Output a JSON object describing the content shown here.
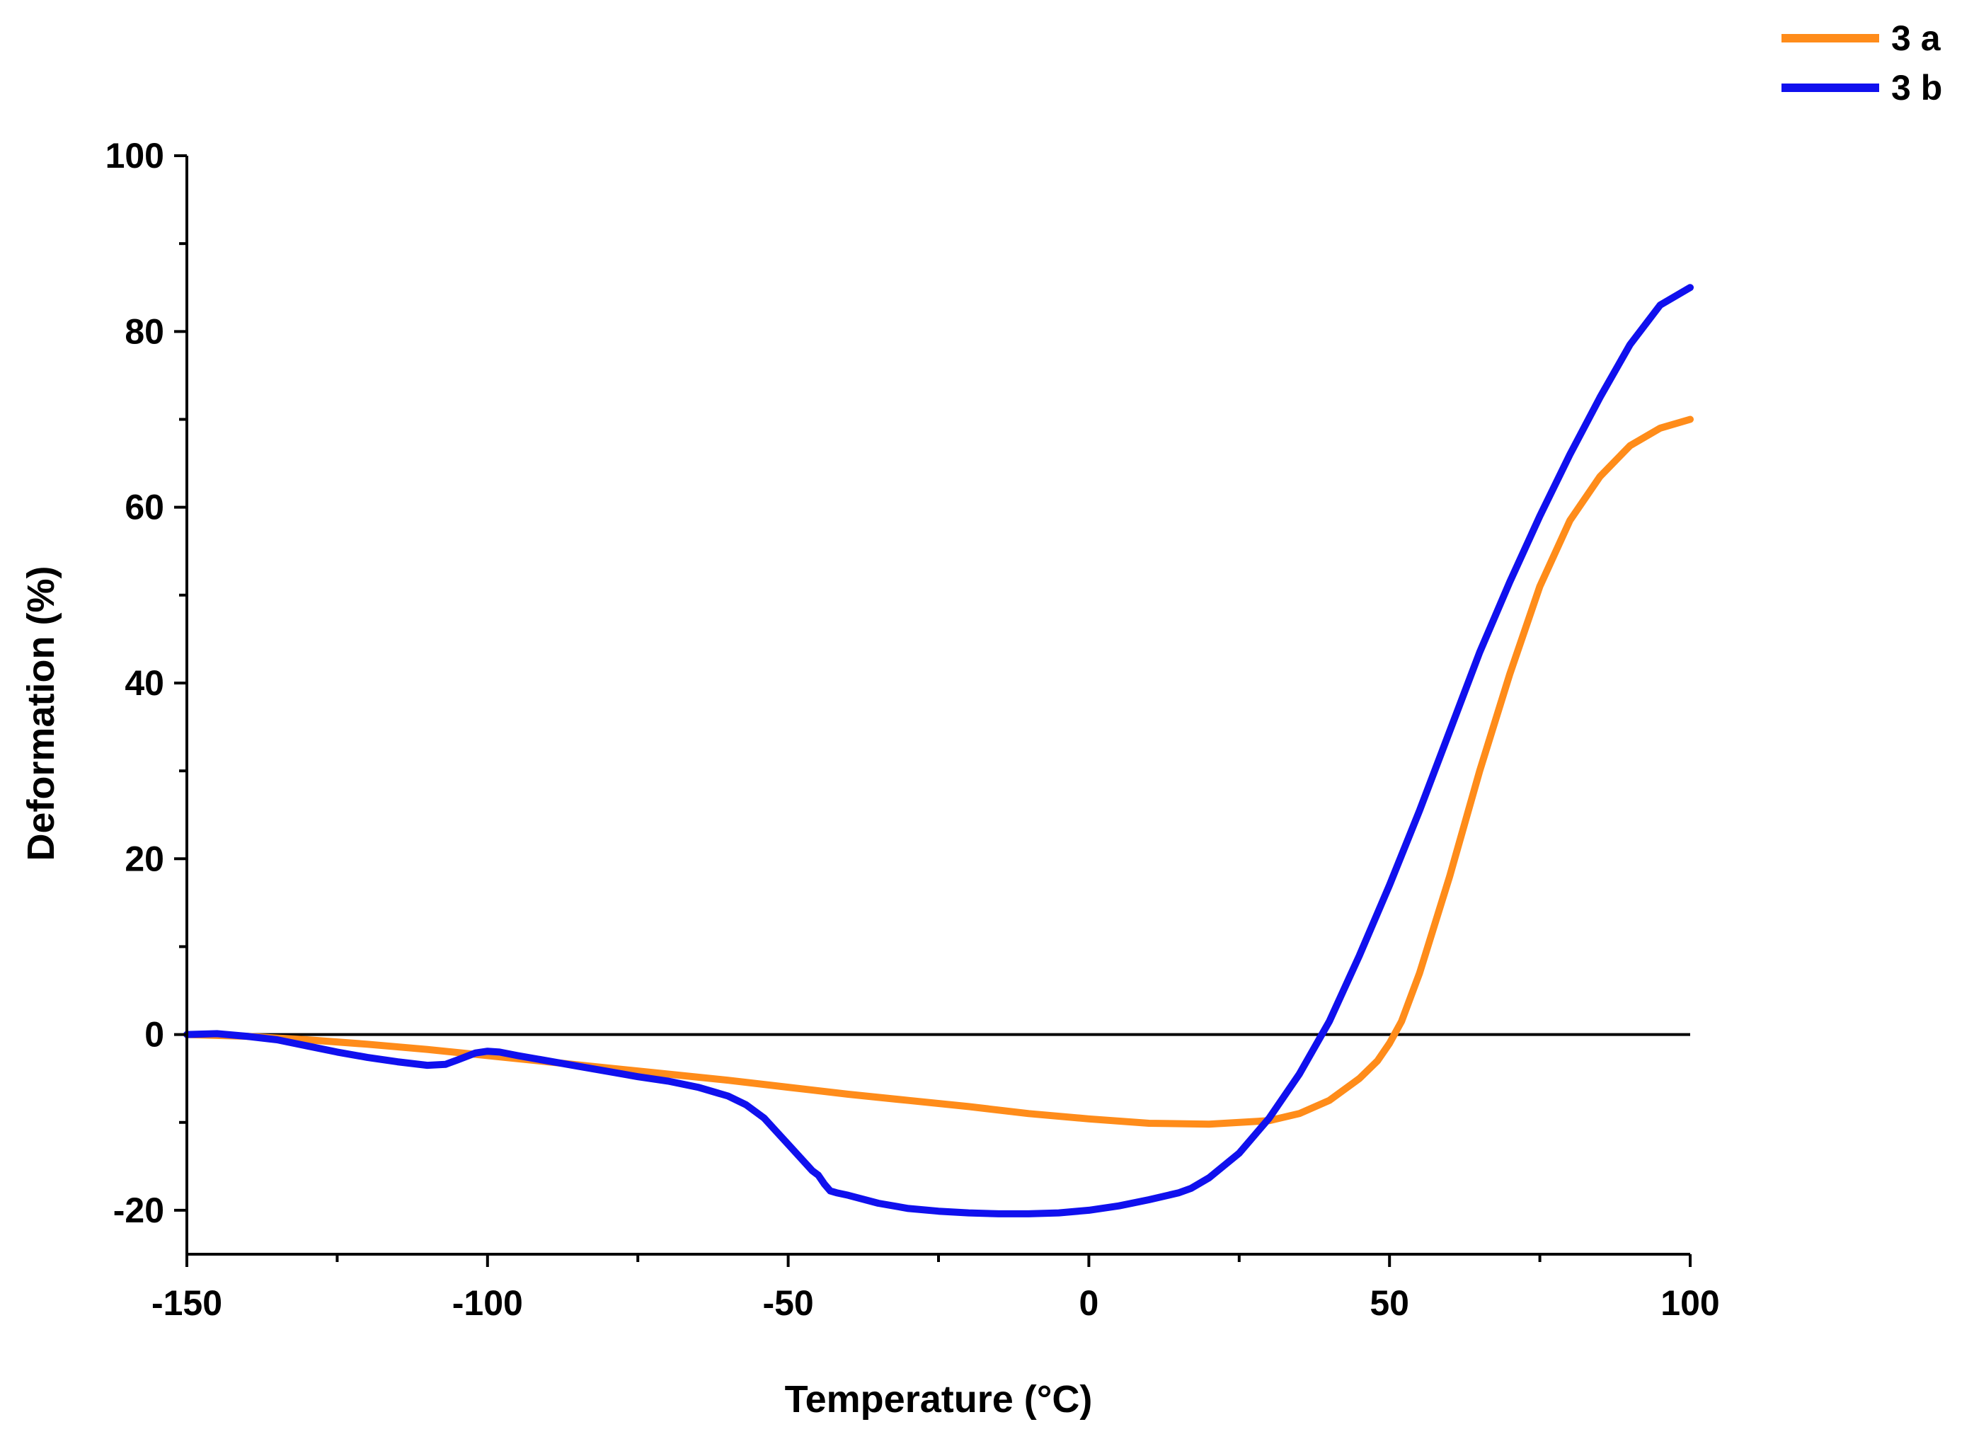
{
  "chart_data": {
    "type": "line",
    "title": "",
    "xlabel": "Temperature (°C)",
    "ylabel": "Deformation (%)",
    "xlim": [
      -150,
      100
    ],
    "ylim": [
      -25,
      100
    ],
    "x_ticks": [
      -150,
      -100,
      -50,
      0,
      50,
      100
    ],
    "x_tick_labels": [
      "-150",
      "-100",
      "-50",
      "0",
      "50",
      "100"
    ],
    "x_minor_step": 25,
    "y_ticks": [
      -20,
      0,
      20,
      40,
      60,
      80,
      100
    ],
    "y_tick_labels": [
      "-20",
      "0",
      "20",
      "40",
      "60",
      "80",
      "100"
    ],
    "y_minor_step": 10,
    "zero_line": true,
    "grid": false,
    "legend_position": "top-right",
    "series": [
      {
        "name": "3 a",
        "color": "#ff8c1a",
        "x": [
          -150,
          -140,
          -130,
          -120,
          -110,
          -100,
          -90,
          -80,
          -70,
          -60,
          -50,
          -40,
          -30,
          -20,
          -10,
          0,
          10,
          20,
          30,
          35,
          40,
          45,
          48,
          50,
          52,
          55,
          60,
          65,
          70,
          75,
          80,
          85,
          90,
          95,
          100
        ],
        "y": [
          0,
          -0.2,
          -0.6,
          -1.1,
          -1.7,
          -2.4,
          -3.1,
          -3.8,
          -4.5,
          -5.2,
          -6.0,
          -6.8,
          -7.5,
          -8.2,
          -9.0,
          -9.6,
          -10.1,
          -10.2,
          -9.8,
          -9.0,
          -7.5,
          -5.0,
          -3.0,
          -1.0,
          1.5,
          7.0,
          18.0,
          30.0,
          41.0,
          51.0,
          58.5,
          63.5,
          67.0,
          69.0,
          70.0
        ]
      },
      {
        "name": "3 b",
        "color": "#1010ee",
        "x": [
          -150,
          -145,
          -140,
          -135,
          -130,
          -125,
          -120,
          -115,
          -110,
          -107,
          -105,
          -102,
          -100,
          -98,
          -95,
          -90,
          -85,
          -80,
          -75,
          -70,
          -65,
          -60,
          -57,
          -54,
          -52,
          -50,
          -48,
          -46,
          -45,
          -44,
          -43,
          -42,
          -40,
          -35,
          -30,
          -25,
          -20,
          -15,
          -10,
          -5,
          0,
          5,
          10,
          15,
          17,
          20,
          25,
          30,
          35,
          40,
          45,
          50,
          55,
          60,
          65,
          70,
          75,
          80,
          85,
          90,
          95,
          100
        ],
        "y": [
          0,
          0.1,
          -0.2,
          -0.6,
          -1.3,
          -2.0,
          -2.6,
          -3.1,
          -3.5,
          -3.4,
          -2.9,
          -2.1,
          -1.9,
          -2.0,
          -2.4,
          -3.0,
          -3.6,
          -4.2,
          -4.8,
          -5.3,
          -6.0,
          -7.0,
          -8.0,
          -9.5,
          -11.0,
          -12.5,
          -14.0,
          -15.5,
          -16.0,
          -17.0,
          -17.8,
          -18.0,
          -18.3,
          -19.2,
          -19.8,
          -20.1,
          -20.3,
          -20.4,
          -20.4,
          -20.3,
          -20.0,
          -19.5,
          -18.8,
          -18.0,
          -17.5,
          -16.3,
          -13.5,
          -9.5,
          -4.5,
          1.5,
          9.0,
          17.0,
          25.5,
          34.5,
          43.5,
          51.5,
          59.0,
          66.0,
          72.5,
          78.5,
          83.0,
          85.0
        ]
      }
    ]
  }
}
